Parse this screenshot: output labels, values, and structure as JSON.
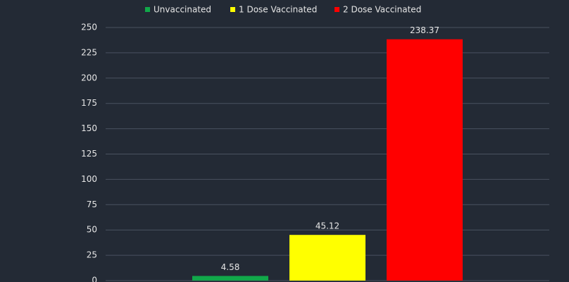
{
  "chart_data": {
    "type": "bar",
    "categories": [
      null
    ],
    "series": [
      {
        "name": "Unvaccinated",
        "color": "#11a84a",
        "values": [
          4.58
        ]
      },
      {
        "name": "1 Dose Vaccinated",
        "color": "#ffff00",
        "values": [
          45.12
        ]
      },
      {
        "name": "2 Dose Vaccinated",
        "color": "#ff0000",
        "values": [
          238.37
        ]
      }
    ],
    "ylim": [
      0,
      250
    ],
    "yticks": [
      0,
      25,
      50,
      75,
      100,
      125,
      150,
      175,
      200,
      225,
      250
    ],
    "grid": true,
    "legend": "top"
  }
}
